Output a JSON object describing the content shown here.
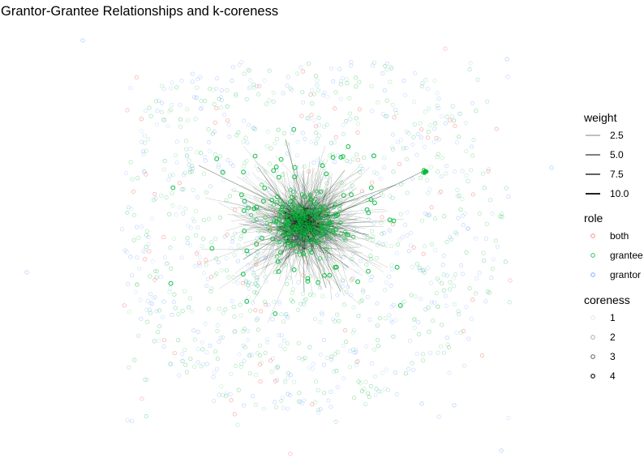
{
  "title": "Grantor-Grantee Relationships and k-coreness",
  "colors": {
    "both": "#f8766d",
    "grantee": "#00ba38",
    "grantor": "#619cff",
    "edge": "#0f2b14"
  },
  "chart_data": {
    "type": "network",
    "legend_position": "right",
    "grid": false,
    "weight": {
      "title": "weight",
      "levels": [
        "2.5",
        "5.0",
        "7.5",
        "10.0"
      ]
    },
    "role": {
      "title": "role",
      "levels": [
        "both",
        "grantee",
        "grantor"
      ]
    },
    "coreness": {
      "title": "coreness",
      "levels": [
        "1",
        "2",
        "3",
        "4"
      ]
    }
  }
}
